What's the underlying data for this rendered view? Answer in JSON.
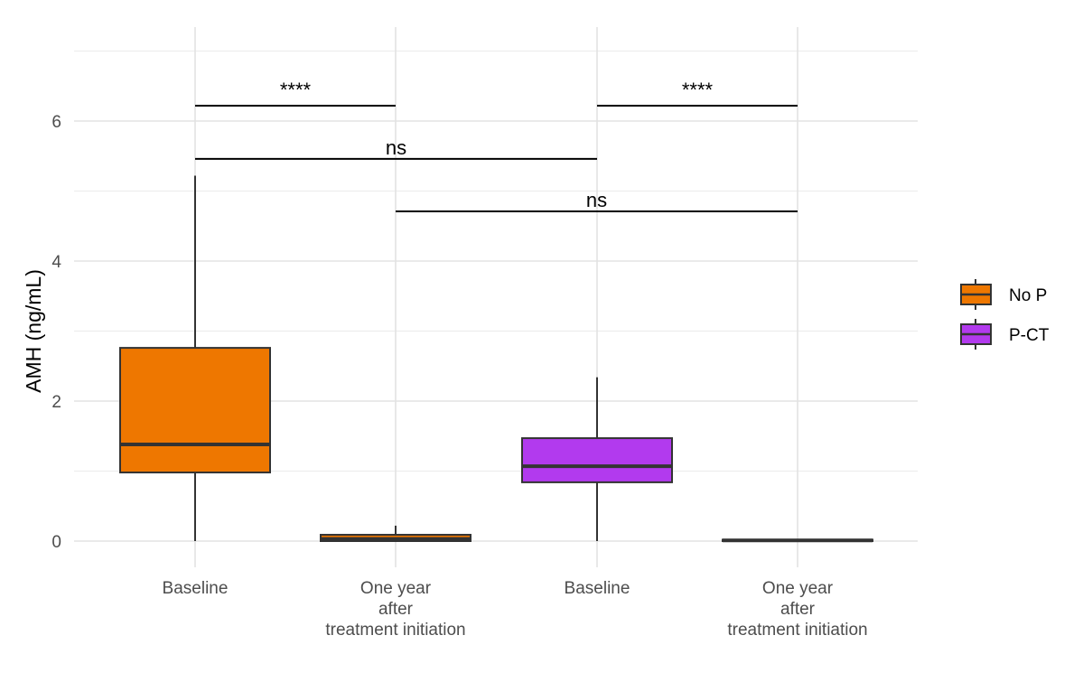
{
  "chart_data": {
    "type": "box",
    "title": "",
    "xlabel": "",
    "ylabel": "AMH (ng/mL)",
    "ylim": [
      -0.35,
      7.1
    ],
    "yticks": [
      0,
      2,
      4,
      6
    ],
    "grid": true,
    "legend_position": "right",
    "legend": [
      {
        "name": "No P",
        "color": "#EE7700"
      },
      {
        "name": "P-CT",
        "color": "#B23AEE"
      }
    ],
    "categories": [
      {
        "label_lines": [
          "Baseline"
        ],
        "group": "No P"
      },
      {
        "label_lines": [
          "One year",
          "after",
          "treatment initiation"
        ],
        "group": "No P"
      },
      {
        "label_lines": [
          "Baseline"
        ],
        "group": "P-CT"
      },
      {
        "label_lines": [
          "One year",
          "after",
          "treatment initiation"
        ],
        "group": "P-CT"
      }
    ],
    "boxes": [
      {
        "group": "No P",
        "min": 0,
        "q1": 0.98,
        "median": 1.38,
        "q3": 2.76,
        "max": 5.22
      },
      {
        "group": "No P",
        "min": 0,
        "q1": 0.0,
        "median": 0.03,
        "q3": 0.09,
        "max": 0.22
      },
      {
        "group": "P-CT",
        "min": 0,
        "q1": 0.84,
        "median": 1.07,
        "q3": 1.47,
        "max": 2.34
      },
      {
        "group": "P-CT",
        "min": 0,
        "q1": 0.0,
        "median": 0.01,
        "q3": 0.02,
        "max": 0.02
      }
    ],
    "annotations": [
      {
        "from": 0,
        "to": 1,
        "y": 6.22,
        "label": "****"
      },
      {
        "from": 2,
        "to": 3,
        "y": 6.22,
        "label": "****"
      },
      {
        "from": 0,
        "to": 2,
        "y": 5.46,
        "label": "ns"
      },
      {
        "from": 1,
        "to": 3,
        "y": 4.71,
        "label": "ns"
      }
    ]
  }
}
